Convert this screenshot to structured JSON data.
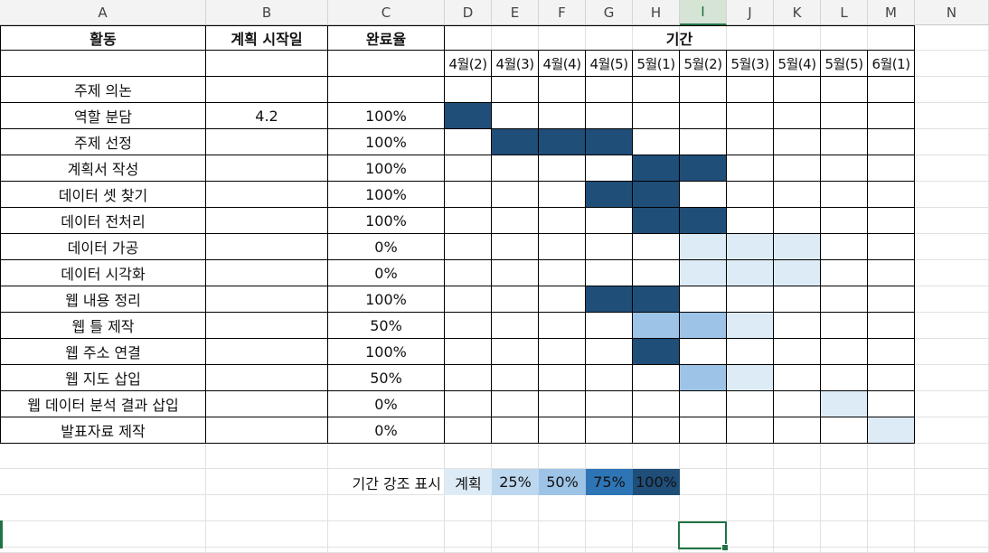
{
  "columns": [
    "A",
    "B",
    "C",
    "D",
    "E",
    "F",
    "G",
    "H",
    "I",
    "J",
    "K",
    "L",
    "M",
    "N"
  ],
  "selected_column": "I",
  "headers": {
    "activity": "활동",
    "plan_start": "계획 시작일",
    "completion": "완료율",
    "period": "기간"
  },
  "weeks": [
    "4월(2)",
    "4월(3)",
    "4월(4)",
    "4월(5)",
    "5월(1)",
    "5월(2)",
    "5월(3)",
    "5월(4)",
    "5월(5)",
    "6월(1)"
  ],
  "tasks": [
    {
      "name": "주제 의논",
      "start": "",
      "pct": "",
      "bars": []
    },
    {
      "name": "역할 분담",
      "start": "4.2",
      "pct": "100%",
      "bars": [
        [
          0,
          "100"
        ]
      ]
    },
    {
      "name": "주제 선정",
      "start": "",
      "pct": "100%",
      "bars": [
        [
          1,
          "100"
        ],
        [
          2,
          "100"
        ],
        [
          3,
          "100"
        ]
      ]
    },
    {
      "name": "계획서 작성",
      "start": "",
      "pct": "100%",
      "bars": [
        [
          4,
          "100"
        ],
        [
          5,
          "100"
        ]
      ]
    },
    {
      "name": "데이터 셋 찾기",
      "start": "",
      "pct": "100%",
      "bars": [
        [
          3,
          "100"
        ],
        [
          4,
          "100"
        ]
      ]
    },
    {
      "name": "데이터 전처리",
      "start": "",
      "pct": "100%",
      "bars": [
        [
          4,
          "100"
        ],
        [
          5,
          "100"
        ]
      ]
    },
    {
      "name": "데이터 가공",
      "start": "",
      "pct": "0%",
      "bars": [
        [
          5,
          "plan"
        ],
        [
          6,
          "plan"
        ],
        [
          7,
          "plan"
        ]
      ]
    },
    {
      "name": "데이터 시각화",
      "start": "",
      "pct": "0%",
      "bars": [
        [
          5,
          "plan"
        ],
        [
          6,
          "plan"
        ],
        [
          7,
          "plan"
        ]
      ]
    },
    {
      "name": "웹 내용 정리",
      "start": "",
      "pct": "100%",
      "bars": [
        [
          3,
          "100"
        ],
        [
          4,
          "100"
        ]
      ]
    },
    {
      "name": "웹 틀 제작",
      "start": "",
      "pct": "50%",
      "bars": [
        [
          4,
          "50"
        ],
        [
          5,
          "50"
        ],
        [
          6,
          "plan"
        ]
      ]
    },
    {
      "name": "웹 주소 연결",
      "start": "",
      "pct": "100%",
      "bars": [
        [
          4,
          "100"
        ]
      ]
    },
    {
      "name": "웹 지도 삽입",
      "start": "",
      "pct": "50%",
      "bars": [
        [
          5,
          "50"
        ],
        [
          6,
          "plan"
        ]
      ]
    },
    {
      "name": "웹 데이터 분석 결과 삽입",
      "start": "",
      "pct": "0%",
      "bars": [
        [
          8,
          "plan"
        ]
      ]
    },
    {
      "name": "발표자료 제작",
      "start": "",
      "pct": "0%",
      "bars": [
        [
          9,
          "plan"
        ]
      ]
    }
  ],
  "legend": {
    "title": "기간 강조 표시",
    "items": [
      {
        "label": "계획",
        "bg": "#ddebf7"
      },
      {
        "label": "25%",
        "bg": "#bdd7ee"
      },
      {
        "label": "50%",
        "bg": "#9dc3e6"
      },
      {
        "label": "75%",
        "bg": "#2e75b6"
      },
      {
        "label": "100%",
        "bg": "#1f4e79"
      }
    ]
  },
  "colors": {
    "complete": "#1f4e79",
    "half": "#9dc3e6",
    "plan": "#ddebf7",
    "excel_green": "#217346"
  }
}
